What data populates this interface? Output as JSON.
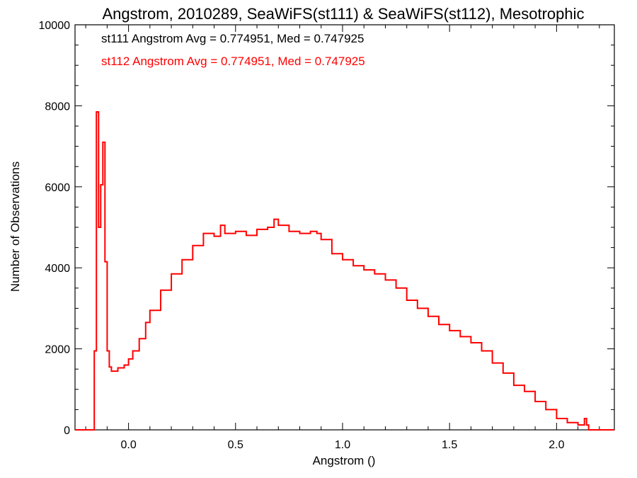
{
  "chart_data": {
    "type": "histogram",
    "title": "Angstrom, 2010289, SeaWiFS(st111) & SeaWiFS(st112), Mesotrophic",
    "xlabel": "Angstrom ()",
    "ylabel": "Number of Observations",
    "xlim": [
      -0.25,
      2.27
    ],
    "ylim": [
      0,
      10000
    ],
    "x_ticks": [
      0.0,
      0.5,
      1.0,
      1.5,
      2.0
    ],
    "x_tick_labels": [
      "0.0",
      "0.5",
      "1.0",
      "1.5",
      "2.0"
    ],
    "y_ticks": [
      0,
      2000,
      4000,
      6000,
      8000,
      10000
    ],
    "y_tick_labels": [
      "0",
      "2000",
      "4000",
      "6000",
      "8000",
      "10000"
    ],
    "grid": false,
    "annotations": [
      {
        "text": "st111 Angstrom Avg = 0.774951, Med = 0.747925",
        "color": "#000000"
      },
      {
        "text": "st112 Angstrom Avg = 0.774951, Med = 0.747925",
        "color": "#ff0000"
      }
    ],
    "series": [
      {
        "color": "#ff0000",
        "x": [
          -0.25,
          -0.16,
          -0.15,
          -0.14,
          -0.13,
          -0.12,
          -0.11,
          -0.1,
          -0.09,
          -0.08,
          -0.05,
          -0.02,
          0.0,
          0.02,
          0.05,
          0.08,
          0.1,
          0.15,
          0.2,
          0.25,
          0.3,
          0.35,
          0.4,
          0.43,
          0.45,
          0.5,
          0.55,
          0.6,
          0.65,
          0.68,
          0.7,
          0.75,
          0.8,
          0.85,
          0.88,
          0.9,
          0.95,
          1.0,
          1.05,
          1.1,
          1.15,
          1.2,
          1.25,
          1.3,
          1.35,
          1.4,
          1.45,
          1.5,
          1.55,
          1.6,
          1.65,
          1.7,
          1.75,
          1.8,
          1.85,
          1.9,
          1.95,
          2.0,
          2.05,
          2.1,
          2.13,
          2.14,
          2.15,
          2.16,
          2.27
        ],
        "values": [
          0,
          1950,
          7850,
          5000,
          6050,
          7100,
          4150,
          1950,
          1550,
          1450,
          1530,
          1600,
          1750,
          1950,
          2250,
          2650,
          2950,
          3450,
          3850,
          4200,
          4550,
          4850,
          4780,
          5050,
          4850,
          4900,
          4800,
          4950,
          5000,
          5200,
          5050,
          4900,
          4850,
          4900,
          4850,
          4700,
          4350,
          4200,
          4050,
          3950,
          3850,
          3700,
          3500,
          3200,
          3000,
          2800,
          2600,
          2450,
          2300,
          2150,
          1950,
          1650,
          1400,
          1100,
          950,
          700,
          500,
          280,
          180,
          120,
          280,
          120,
          0,
          0,
          0
        ]
      }
    ]
  }
}
